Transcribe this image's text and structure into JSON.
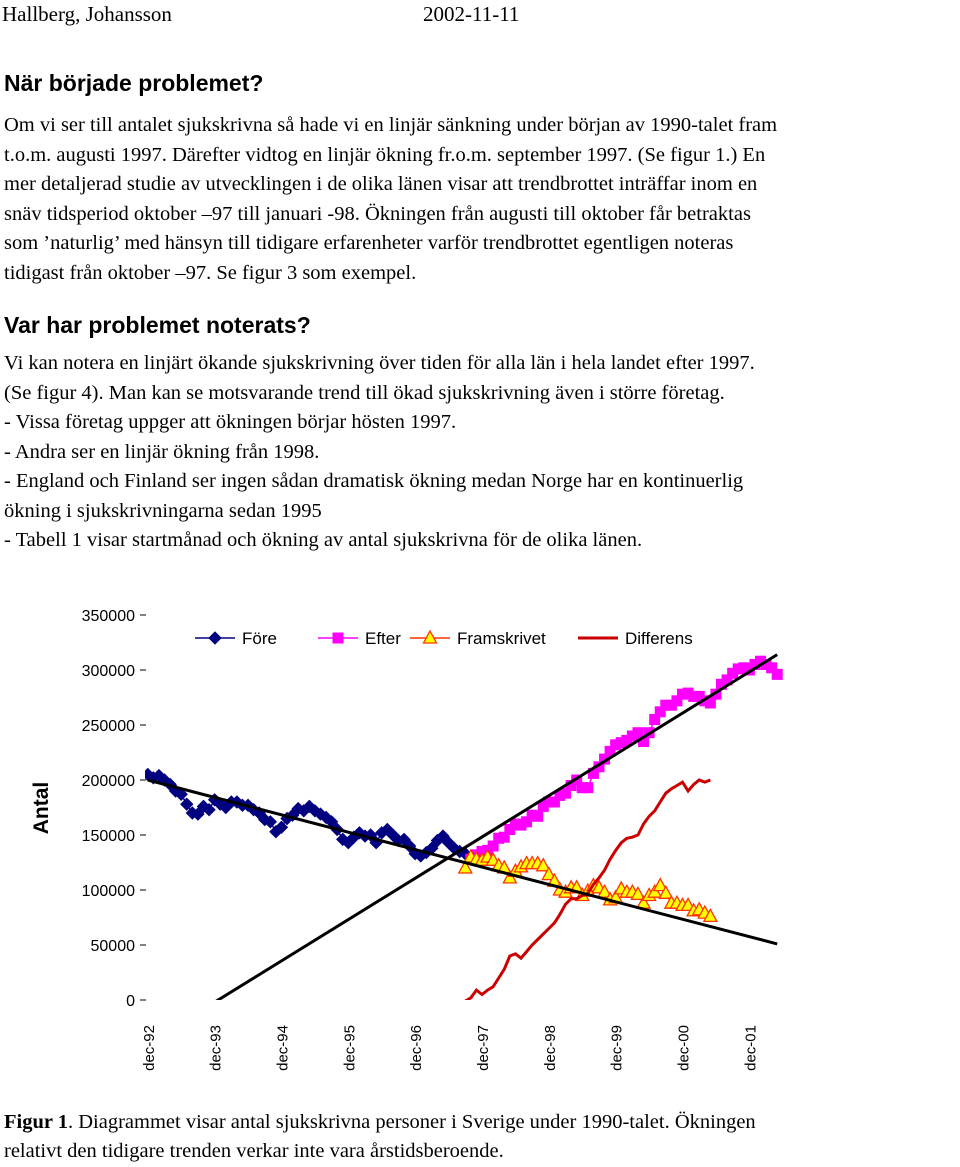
{
  "header": {
    "author": "Hallberg, Johansson",
    "date": "2002-11-11"
  },
  "section1": {
    "title": "När började problemet?",
    "lines": [
      "Om vi ser till antalet sjukskrivna så hade vi en linjär sänkning under början av 1990-talet fram",
      "t.o.m. augusti 1997. Därefter vidtog en linjär ökning fr.o.m. september 1997. (Se figur 1.) En",
      "mer detaljerad studie av utvecklingen i de olika länen visar att trendbrottet inträffar inom en",
      "snäv tidsperiod oktober –97 till januari -98. Ökningen från augusti till oktober får betraktas",
      "som ’naturlig’ med hänsyn till tidigare erfarenheter varför trendbrottet egentligen noteras",
      "tidigast från oktober –97. Se figur 3 som exempel."
    ]
  },
  "section2": {
    "title": "Var har problemet noterats?",
    "lines": [
      "Vi kan notera en linjärt ökande sjukskrivning över tiden för alla län i hela landet efter 1997.",
      "(Se figur 4). Man kan se motsvarande trend till ökad sjukskrivning även i större företag.",
      "- Vissa företag uppger att ökningen börjar hösten 1997.",
      "- Andra ser en linjär ökning från 1998.",
      "- England och Finland ser ingen sådan dramatisk ökning medan Norge har en kontinuerlig",
      "ökning i sjukskrivningarna sedan 1995",
      "- Tabell 1 visar startmånad och ökning av antal sjukskrivna för de olika länen."
    ]
  },
  "caption": {
    "label": "Figur 1",
    "text_line1": ". Diagrammet visar antal sjukskrivna personer i Sverige under 1990-talet. Ökningen",
    "text_line2": "relativt den tidigare trenden verkar inte vara årstidsberoende."
  },
  "chart_data": {
    "type": "line",
    "title": "",
    "xlabel": "",
    "ylabel": "Antal",
    "ylim": [
      0,
      350000
    ],
    "yticks": [
      0,
      50000,
      100000,
      150000,
      200000,
      250000,
      300000,
      350000
    ],
    "ytick_labels": [
      "0",
      "50000",
      "100000",
      "150000",
      "200000",
      "250000",
      "300000",
      "350000"
    ],
    "x_tick_labels": [
      "dec-92",
      "dec-93",
      "dec-94",
      "dec-95",
      "dec-96",
      "dec-97",
      "dec-98",
      "dec-99",
      "dec-00",
      "dec-01"
    ],
    "x_unit": "months since dec-92",
    "xlim": [
      -0.5,
      113.5
    ],
    "grid": false,
    "legend": "top",
    "colors": {
      "Före": "#000080",
      "Efter": "#ff00ff",
      "Framskrivet": "#ffff00",
      "Differens": "#cc0000",
      "trend": "#000000"
    },
    "series": [
      {
        "name": "Före",
        "x": [
          0,
          1,
          2,
          3,
          4,
          5,
          6,
          7,
          8,
          9,
          10,
          11,
          12,
          13,
          14,
          15,
          16,
          17,
          18,
          19,
          20,
          21,
          22,
          23,
          24,
          25,
          26,
          27,
          28,
          29,
          30,
          31,
          32,
          33,
          34,
          35,
          36,
          37,
          38,
          39,
          40,
          41,
          42,
          43,
          44,
          45,
          46,
          47,
          48,
          49,
          50,
          51,
          52,
          53,
          54,
          55,
          56,
          57
        ],
        "y": [
          205000,
          202000,
          204000,
          200000,
          196000,
          190000,
          187000,
          178000,
          170000,
          169000,
          176000,
          173000,
          182000,
          178000,
          175000,
          180000,
          180000,
          177000,
          177000,
          173000,
          170000,
          164000,
          162000,
          153000,
          157000,
          165000,
          168000,
          174000,
          172000,
          176000,
          172000,
          169000,
          166000,
          162000,
          155000,
          146000,
          143000,
          148000,
          152000,
          149000,
          150000,
          143000,
          152000,
          155000,
          150000,
          145000,
          146000,
          140000,
          133000,
          131000,
          134000,
          138000,
          145000,
          149000,
          143000,
          138000,
          135000,
          133000
        ]
      },
      {
        "name": "Efter",
        "x": [
          58,
          59,
          60,
          61,
          62,
          63,
          64,
          65,
          66,
          67,
          68,
          69,
          70,
          71,
          72,
          73,
          74,
          75,
          76,
          77,
          78,
          79,
          80,
          81,
          82,
          83,
          84,
          85,
          86,
          87,
          88,
          89,
          90,
          91,
          92,
          93,
          94,
          95,
          96,
          97,
          98,
          99,
          100,
          101,
          102,
          103,
          104,
          105,
          106,
          107,
          108,
          109,
          110,
          111,
          112,
          113
        ],
        "y": [
          128000,
          132000,
          135000,
          136000,
          140000,
          147000,
          148000,
          155000,
          160000,
          159000,
          162000,
          168000,
          167000,
          176000,
          180000,
          180000,
          186000,
          188000,
          195000,
          200000,
          193000,
          193000,
          206000,
          212000,
          219000,
          226000,
          232000,
          234000,
          236000,
          240000,
          243000,
          235000,
          243000,
          255000,
          262000,
          268000,
          268000,
          272000,
          278000,
          279000,
          276000,
          276000,
          272000,
          270000,
          278000,
          287000,
          291000,
          297000,
          301000,
          302000,
          300000,
          305000,
          308000,
          305000,
          302000,
          296000
        ]
      },
      {
        "name": "Framskrivet",
        "x": [
          57,
          58,
          59,
          60,
          61,
          62,
          63,
          64,
          65,
          66,
          67,
          68,
          69,
          70,
          71,
          72,
          73,
          74,
          75,
          76,
          77,
          78,
          79,
          80,
          81,
          82,
          83,
          84,
          85,
          86,
          87,
          88,
          89,
          90,
          91,
          92,
          93,
          94,
          95,
          96,
          97,
          98,
          99,
          100,
          101
        ],
        "y": [
          120000,
          130000,
          128000,
          127000,
          130000,
          127000,
          122000,
          120000,
          111000,
          117000,
          121000,
          124000,
          124000,
          124000,
          122000,
          114000,
          108000,
          100000,
          98000,
          102000,
          102000,
          95000,
          99000,
          104000,
          102000,
          98000,
          91000,
          93000,
          101000,
          98000,
          98000,
          96000,
          88000,
          95000,
          98000,
          104000,
          97000,
          88000,
          88000,
          86000,
          86000,
          81000,
          82000,
          79000,
          76000
        ]
      },
      {
        "name": "Differens",
        "x": [
          57,
          58,
          59,
          60,
          61,
          62,
          63,
          64,
          65,
          66,
          67,
          68,
          69,
          70,
          71,
          72,
          73,
          74,
          75,
          76,
          77,
          78,
          79,
          80,
          81,
          82,
          83,
          84,
          85,
          86,
          87,
          88,
          89,
          90,
          91,
          92,
          93,
          94,
          95,
          96,
          97,
          98,
          99,
          100,
          101
        ],
        "y": [
          -1000,
          2000,
          9000,
          5000,
          9000,
          12000,
          20000,
          28000,
          40000,
          42000,
          38000,
          44000,
          50000,
          55000,
          60000,
          65000,
          70000,
          78000,
          87000,
          92000,
          92000,
          95000,
          97000,
          105000,
          111000,
          118000,
          128000,
          136000,
          143000,
          147000,
          148000,
          150000,
          160000,
          167000,
          172000,
          180000,
          188000,
          192000,
          195000,
          198000,
          190000,
          196000,
          200000,
          198000,
          200000
        ]
      },
      {
        "name": "",
        "x": [
          0,
          113
        ],
        "y": [
          200000,
          51000
        ]
      },
      {
        "name": "",
        "x": [
          12,
          113
        ],
        "y": [
          -2000,
          314000
        ]
      }
    ]
  }
}
